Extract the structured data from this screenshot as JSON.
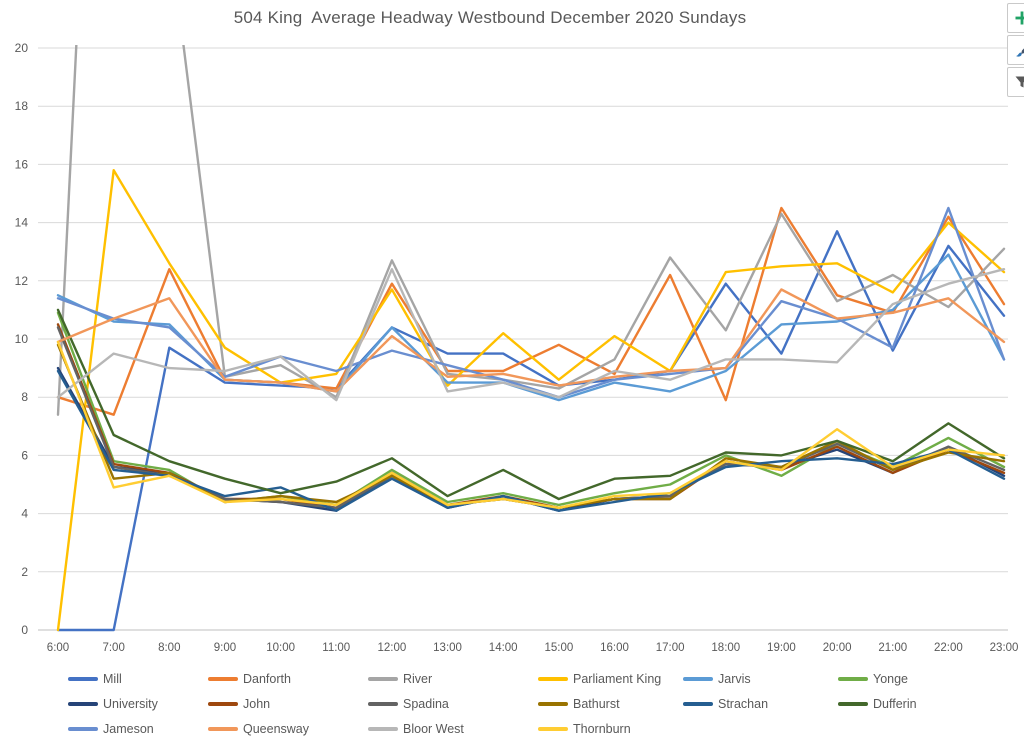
{
  "title": "504 King  Average Headway Westbound December 2020 Sundays",
  "toolbar": {
    "buttons": [
      {
        "name": "chart-elements-button",
        "icon": "plus-icon",
        "accent": "#21a366"
      },
      {
        "name": "chart-styles-button",
        "icon": "brush-icon",
        "accent": "#44546a"
      },
      {
        "name": "chart-filters-button",
        "icon": "funnel-icon",
        "accent": "#595959"
      }
    ]
  },
  "colors": {
    "title_text": "#595959",
    "axis_text": "#595959",
    "gridline": "#d9d9d9",
    "axis_line": "#bfbfbf",
    "background": "#ffffff"
  },
  "chart_data": {
    "type": "line",
    "title": "504 King  Average Headway Westbound December 2020 Sundays",
    "xlabel": "",
    "ylabel": "",
    "ylim": [
      0,
      20
    ],
    "ytick_step": 2,
    "grid": true,
    "legend_position": "bottom",
    "x": [
      "6:00",
      "7:00",
      "8:00",
      "9:00",
      "10:00",
      "11:00",
      "12:00",
      "13:00",
      "14:00",
      "15:00",
      "16:00",
      "17:00",
      "18:00",
      "19:00",
      "20:00",
      "21:00",
      "22:00",
      "23:00"
    ],
    "series": [
      {
        "name": "Mill",
        "color": "#4472C4",
        "values": [
          0,
          0,
          9.7,
          8.5,
          8.4,
          8.3,
          10.4,
          9.5,
          9.5,
          8.4,
          8.6,
          8.9,
          11.9,
          9.5,
          13.7,
          9.6,
          13.2,
          10.8
        ]
      },
      {
        "name": "Danforth",
        "color": "#ED7D31",
        "values": [
          8.0,
          7.4,
          12.4,
          8.6,
          8.5,
          8.3,
          11.9,
          8.9,
          8.9,
          9.8,
          8.8,
          12.2,
          7.9,
          14.5,
          11.5,
          10.9,
          14.2,
          11.2
        ]
      },
      {
        "name": "River",
        "color": "#A5A5A5",
        "values": [
          7.4,
          46,
          24,
          8.7,
          9.1,
          8.0,
          12.7,
          8.8,
          8.6,
          8.3,
          9.3,
          12.8,
          10.3,
          14.3,
          11.3,
          12.2,
          11.1,
          13.1
        ]
      },
      {
        "name": "Parliament King",
        "color": "#FFC000",
        "values": [
          0,
          15.8,
          12.6,
          9.7,
          8.5,
          8.8,
          11.7,
          8.4,
          10.2,
          8.6,
          10.1,
          8.9,
          12.3,
          12.5,
          12.6,
          11.6,
          14.0,
          12.3
        ]
      },
      {
        "name": "Jarvis",
        "color": "#5B9BD5",
        "values": [
          11.5,
          10.6,
          10.5,
          8.6,
          8.5,
          8.2,
          10.4,
          8.5,
          8.5,
          7.9,
          8.5,
          8.2,
          8.9,
          10.5,
          10.6,
          11.0,
          12.9,
          9.3
        ]
      },
      {
        "name": "Yonge",
        "color": "#70AD47",
        "values": [
          10.9,
          5.8,
          5.5,
          4.4,
          4.6,
          4.3,
          5.5,
          4.4,
          4.7,
          4.3,
          4.7,
          5.0,
          6.0,
          5.3,
          6.4,
          5.6,
          6.6,
          5.6
        ]
      },
      {
        "name": "University",
        "color": "#264478",
        "values": [
          9.0,
          5.6,
          5.4,
          4.5,
          4.4,
          4.1,
          5.3,
          4.2,
          4.6,
          4.1,
          4.5,
          4.6,
          5.7,
          5.6,
          6.2,
          5.4,
          6.3,
          5.3
        ]
      },
      {
        "name": "John",
        "color": "#9E480E",
        "values": [
          10.5,
          5.7,
          5.4,
          4.5,
          4.5,
          4.2,
          5.4,
          4.3,
          4.6,
          4.2,
          4.5,
          4.5,
          5.8,
          5.5,
          6.3,
          5.4,
          6.2,
          5.4
        ]
      },
      {
        "name": "Spadina",
        "color": "#636363",
        "values": [
          10.4,
          5.6,
          5.3,
          4.5,
          4.4,
          4.2,
          5.3,
          4.3,
          4.5,
          4.2,
          4.5,
          4.6,
          5.7,
          5.6,
          6.4,
          5.5,
          6.3,
          5.5
        ]
      },
      {
        "name": "Bathurst",
        "color": "#997300",
        "values": [
          9.8,
          5.2,
          5.4,
          4.4,
          4.6,
          4.4,
          5.3,
          4.3,
          4.5,
          4.2,
          4.5,
          4.5,
          5.9,
          5.6,
          6.5,
          5.5,
          6.1,
          5.8
        ]
      },
      {
        "name": "Strachan",
        "color": "#255E91",
        "values": [
          8.9,
          5.5,
          5.3,
          4.6,
          4.9,
          4.1,
          5.2,
          4.2,
          4.6,
          4.1,
          4.4,
          4.7,
          5.6,
          5.8,
          5.9,
          5.7,
          6.2,
          5.2
        ]
      },
      {
        "name": "Dufferin",
        "color": "#43682B",
        "values": [
          11.0,
          6.7,
          5.8,
          5.2,
          4.7,
          5.1,
          5.9,
          4.6,
          5.5,
          4.5,
          5.2,
          5.3,
          6.1,
          6.0,
          6.5,
          5.8,
          7.1,
          5.9
        ]
      },
      {
        "name": "Jameson",
        "color": "#698ED0",
        "values": [
          11.4,
          10.7,
          10.4,
          8.7,
          9.4,
          8.9,
          9.6,
          9.1,
          8.6,
          8.0,
          8.6,
          8.8,
          9.0,
          11.3,
          10.7,
          9.7,
          14.5,
          9.3
        ]
      },
      {
        "name": "Queensway",
        "color": "#F1975A",
        "values": [
          9.9,
          10.7,
          11.4,
          8.6,
          8.5,
          8.2,
          10.1,
          8.7,
          8.8,
          8.4,
          8.7,
          8.9,
          9.0,
          11.7,
          10.7,
          10.9,
          11.4,
          9.9
        ]
      },
      {
        "name": "Bloor West",
        "color": "#B7B7B7",
        "values": [
          8.0,
          9.5,
          9.0,
          8.9,
          9.4,
          7.9,
          12.4,
          8.2,
          8.5,
          8.0,
          8.9,
          8.6,
          9.3,
          9.3,
          9.2,
          11.2,
          11.9,
          12.4
        ]
      },
      {
        "name": "Thornburn",
        "color": "#FFCD33",
        "values": [
          9.9,
          4.9,
          5.3,
          4.4,
          4.5,
          4.3,
          5.4,
          4.3,
          4.5,
          4.2,
          4.6,
          4.7,
          5.8,
          5.5,
          6.9,
          5.6,
          6.2,
          6.0
        ]
      }
    ],
    "legend_rows": [
      [
        "Mill",
        "Danforth",
        "River",
        "Parliament King",
        "Jarvis",
        "Yonge"
      ],
      [
        "University",
        "John",
        "Spadina",
        "Bathurst",
        "Strachan",
        "Dufferin"
      ],
      [
        "Jameson",
        "Queensway",
        "Bloor West",
        "Thornburn"
      ]
    ]
  }
}
